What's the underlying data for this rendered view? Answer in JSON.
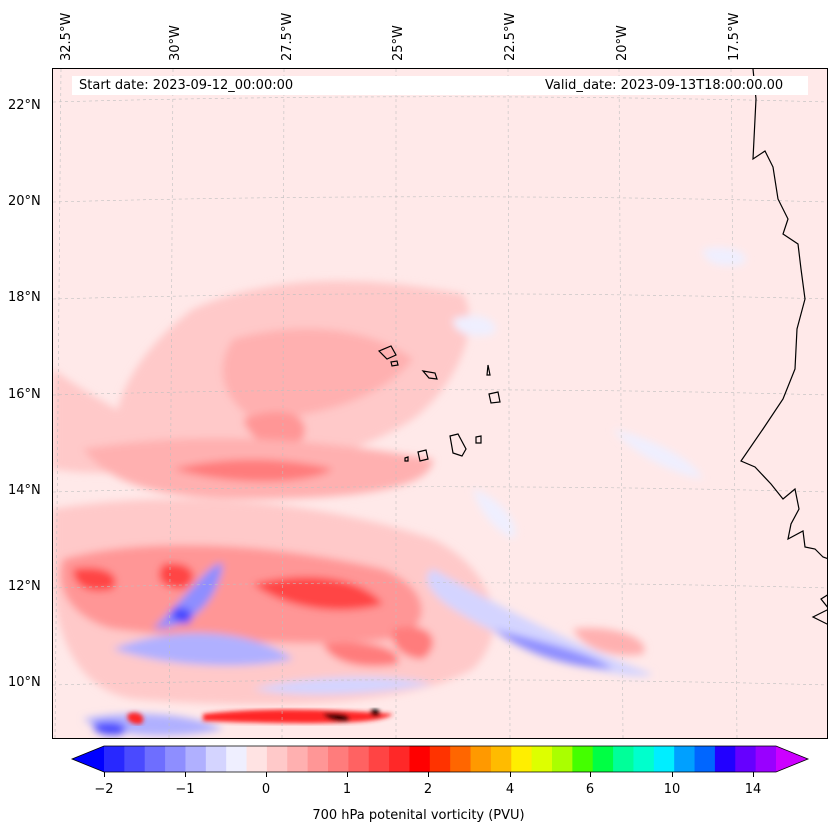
{
  "map": {
    "start_date": "Start date: 2023-09-12_00:00:00",
    "valid_date": "Valid_date: 2023-09-13T18:00:00.00",
    "lon_labels": [
      "32.5°W",
      "30°W",
      "27.5°W",
      "25°W",
      "22.5°W",
      "20°W",
      "17.5°W"
    ],
    "lat_labels": [
      "22°N",
      "20°N",
      "18°N",
      "16°N",
      "14°N",
      "12°N",
      "10°N"
    ]
  },
  "colorbar": {
    "label": "700 hPa potenital vorticity (PVU)",
    "tick_labels": [
      "−2",
      "−1",
      "0",
      "1",
      "2",
      "4",
      "6",
      "10",
      "14"
    ],
    "colors": [
      "#0000ff",
      "#2828ff",
      "#4a4aff",
      "#6e6eff",
      "#8e8eff",
      "#b0b0ff",
      "#d4d4ff",
      "#efefff",
      "#ffe3e3",
      "#ffc9c9",
      "#ffb0b0",
      "#ff9696",
      "#ff7c7c",
      "#ff6262",
      "#ff4444",
      "#ff2828",
      "#ff0000",
      "#ff3300",
      "#ff6600",
      "#ff9900",
      "#ffbb00",
      "#ffee00",
      "#ddff00",
      "#aaff00",
      "#44ff00",
      "#00ff44",
      "#00ff99",
      "#00ffcc",
      "#00eeff",
      "#00a0ff",
      "#0066ff",
      "#2200ff",
      "#6600ff",
      "#9900ff",
      "#cc00ff"
    ]
  },
  "colors": {
    "coast": "#000000",
    "grid": "#bfbfbf"
  }
}
